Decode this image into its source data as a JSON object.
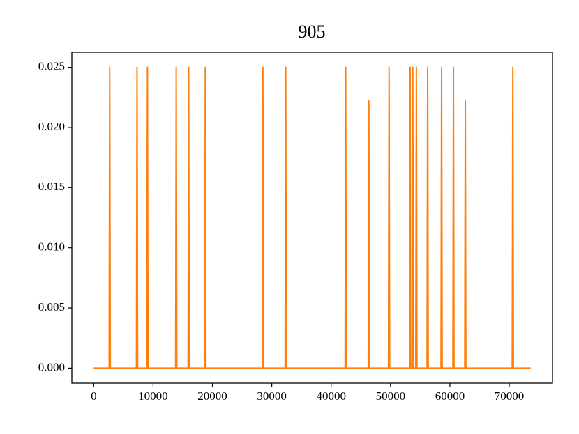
{
  "chart_data": {
    "type": "line",
    "title": "905",
    "x": [
      0,
      2600,
      2700,
      2800,
      7200,
      7300,
      7400,
      8950,
      9050,
      9150,
      13800,
      13900,
      14000,
      15900,
      16000,
      16100,
      18700,
      18800,
      18900,
      28400,
      28500,
      28600,
      32250,
      32350,
      32450,
      42350,
      42450,
      42550,
      46250,
      46350,
      46450,
      49650,
      49750,
      49850,
      53200,
      53300,
      53400,
      53650,
      53750,
      53850,
      54250,
      54350,
      54450,
      56150,
      56250,
      56350,
      58500,
      58600,
      58700,
      60500,
      60600,
      60700,
      62500,
      62600,
      62700,
      70500,
      70600,
      70700,
      73600
    ],
    "values": [
      0,
      0,
      0.025,
      0,
      0,
      0.025,
      0,
      0,
      0.025,
      0,
      0,
      0.025,
      0,
      0,
      0.025,
      0,
      0,
      0.025,
      0,
      0,
      0.025,
      0,
      0,
      0.025,
      0,
      0,
      0.025,
      0,
      0,
      0.0222,
      0,
      0,
      0.025,
      0,
      0,
      0.025,
      0,
      0,
      0.025,
      0,
      0,
      0.025,
      0,
      0,
      0.025,
      0,
      0,
      0.025,
      0,
      0,
      0.025,
      0,
      0,
      0.0222,
      0,
      0,
      0.025,
      0,
      0
    ],
    "color": "#ff7f0e",
    "xlim": [
      -3680,
      77280
    ],
    "ylim": [
      -0.00125,
      0.02625
    ],
    "xticks": [
      0,
      10000,
      20000,
      30000,
      40000,
      50000,
      60000,
      70000
    ],
    "yticks": [
      {
        "value": 0,
        "label": "0.000"
      },
      {
        "value": 0.005,
        "label": "0.005"
      },
      {
        "value": 0.01,
        "label": "0.010"
      },
      {
        "value": 0.015,
        "label": "0.015"
      },
      {
        "value": 0.02,
        "label": "0.020"
      },
      {
        "value": 0.025,
        "label": "0.025"
      }
    ],
    "grid": false
  }
}
